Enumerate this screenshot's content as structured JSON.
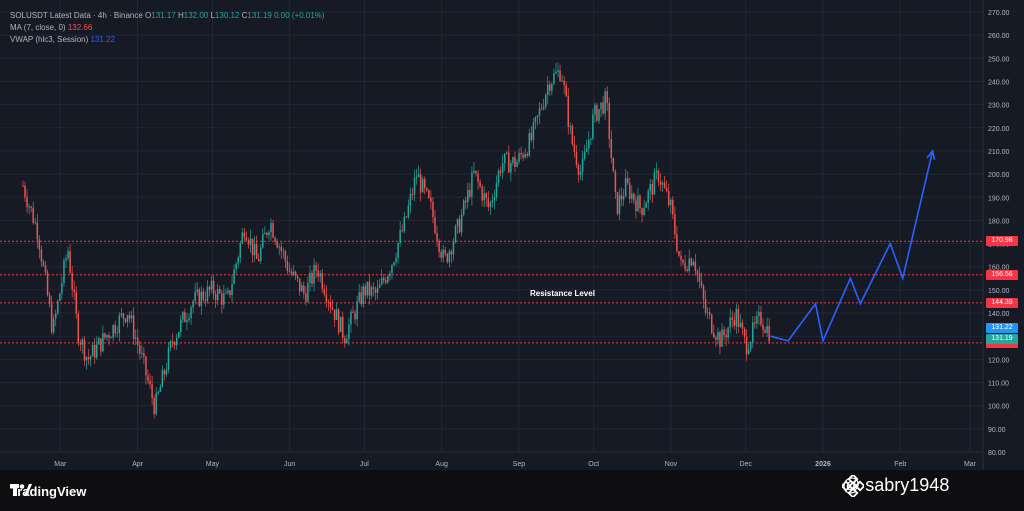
{
  "header": {
    "symbol_line": "SOLUSDT Latest Data · 4h · Binance",
    "open_label": "O",
    "open": "131.17",
    "high_label": "H",
    "high": "132.00",
    "low_label": "L",
    "low": "130.12",
    "close_label": "C",
    "close": "131.19",
    "change": "0.00 (+0.01%)",
    "ma_label": "MA (7, close, 0)",
    "ma_value": "132.66",
    "vwap_label": "VWAP (hlc3, Session)",
    "vwap_value": "131.22"
  },
  "annotation": {
    "resistance_label": "Resistance Level"
  },
  "branding": {
    "tradingview": "TradingView",
    "watermark": "@ sabry1948"
  },
  "colors": {
    "up": "#26a69a",
    "down": "#ef5350",
    "level": "#f23645",
    "projection": "#2962ff",
    "vwap_tag": "#2196f3",
    "ma_tag": "#26a69a"
  },
  "chart_data": {
    "type": "candlestick",
    "title": "SOLUSDT Latest Data · 4h · Binance",
    "x_tick_labels": [
      "Mar",
      "Apr",
      "May",
      "Jun",
      "Jul",
      "Aug",
      "Sep",
      "Oct",
      "Nov",
      "Dec",
      "2026",
      "Feb",
      "Mar"
    ],
    "y_tick_labels": [
      "270.00",
      "260.00",
      "250.00",
      "240.00",
      "230.00",
      "220.00",
      "210.00",
      "200.00",
      "190.00",
      "180.00",
      "170.00",
      "160.00",
      "150.00",
      "140.00",
      "130.00",
      "120.00",
      "110.00",
      "100.00",
      "90.00",
      "80.00"
    ],
    "ylim": [
      80,
      270
    ],
    "grid": true,
    "price_path": [
      {
        "date": "2025-02-14",
        "price": 195
      },
      {
        "date": "2025-02-20",
        "price": 175
      },
      {
        "date": "2025-02-26",
        "price": 132
      },
      {
        "date": "2025-03-04",
        "price": 168
      },
      {
        "date": "2025-03-08",
        "price": 132
      },
      {
        "date": "2025-03-12",
        "price": 120
      },
      {
        "date": "2025-03-20",
        "price": 131
      },
      {
        "date": "2025-03-28",
        "price": 141
      },
      {
        "date": "2025-04-02",
        "price": 123
      },
      {
        "date": "2025-04-08",
        "price": 99
      },
      {
        "date": "2025-04-15",
        "price": 128
      },
      {
        "date": "2025-04-23",
        "price": 145
      },
      {
        "date": "2025-05-01",
        "price": 150
      },
      {
        "date": "2025-05-07",
        "price": 145
      },
      {
        "date": "2025-05-14",
        "price": 178
      },
      {
        "date": "2025-05-19",
        "price": 162
      },
      {
        "date": "2025-05-24",
        "price": 180
      },
      {
        "date": "2025-06-01",
        "price": 158
      },
      {
        "date": "2025-06-07",
        "price": 148
      },
      {
        "date": "2025-06-12",
        "price": 160
      },
      {
        "date": "2025-06-18",
        "price": 143
      },
      {
        "date": "2025-06-23",
        "price": 130
      },
      {
        "date": "2025-07-01",
        "price": 150
      },
      {
        "date": "2025-07-06",
        "price": 148
      },
      {
        "date": "2025-07-12",
        "price": 162
      },
      {
        "date": "2025-07-17",
        "price": 178
      },
      {
        "date": "2025-07-22",
        "price": 200
      },
      {
        "date": "2025-07-28",
        "price": 184
      },
      {
        "date": "2025-08-02",
        "price": 162
      },
      {
        "date": "2025-08-08",
        "price": 178
      },
      {
        "date": "2025-08-14",
        "price": 200
      },
      {
        "date": "2025-08-20",
        "price": 185
      },
      {
        "date": "2025-08-25",
        "price": 205
      },
      {
        "date": "2025-08-31",
        "price": 205
      },
      {
        "date": "2025-09-06",
        "price": 215
      },
      {
        "date": "2025-09-13",
        "price": 240
      },
      {
        "date": "2025-09-18",
        "price": 245
      },
      {
        "date": "2025-09-22",
        "price": 215
      },
      {
        "date": "2025-09-26",
        "price": 200
      },
      {
        "date": "2025-10-01",
        "price": 225
      },
      {
        "date": "2025-10-06",
        "price": 232
      },
      {
        "date": "2025-10-10",
        "price": 185
      },
      {
        "date": "2025-10-14",
        "price": 195
      },
      {
        "date": "2025-10-20",
        "price": 185
      },
      {
        "date": "2025-10-27",
        "price": 200
      },
      {
        "date": "2025-11-01",
        "price": 185
      },
      {
        "date": "2025-11-05",
        "price": 160
      },
      {
        "date": "2025-11-10",
        "price": 165
      },
      {
        "date": "2025-11-15",
        "price": 140
      },
      {
        "date": "2025-11-21",
        "price": 128
      },
      {
        "date": "2025-11-27",
        "price": 140
      },
      {
        "date": "2025-12-01",
        "price": 126
      },
      {
        "date": "2025-12-07",
        "price": 138
      },
      {
        "date": "2025-12-11",
        "price": 131
      }
    ],
    "levels": [
      {
        "label": "170.98",
        "price": 170.98
      },
      {
        "label": "156.56",
        "price": 156.56
      },
      {
        "label": "144.39",
        "price": 144.39
      },
      {
        "label": "127.13",
        "price": 127.13
      }
    ],
    "tags": [
      {
        "label": "131.22",
        "price": 131.22,
        "kind": "vwap"
      },
      {
        "label": "131.19",
        "price": 131.19,
        "kind": "ma"
      }
    ],
    "projection": [
      {
        "date": "2025-12-11",
        "price": 130
      },
      {
        "date": "2025-12-18",
        "price": 128
      },
      {
        "date": "2025-12-29",
        "price": 144
      },
      {
        "date": "2026-01-01",
        "price": 128
      },
      {
        "date": "2026-01-12",
        "price": 155
      },
      {
        "date": "2026-01-16",
        "price": 144
      },
      {
        "date": "2026-01-28",
        "price": 170
      },
      {
        "date": "2026-02-02",
        "price": 155
      },
      {
        "date": "2026-02-14",
        "price": 210
      }
    ]
  }
}
